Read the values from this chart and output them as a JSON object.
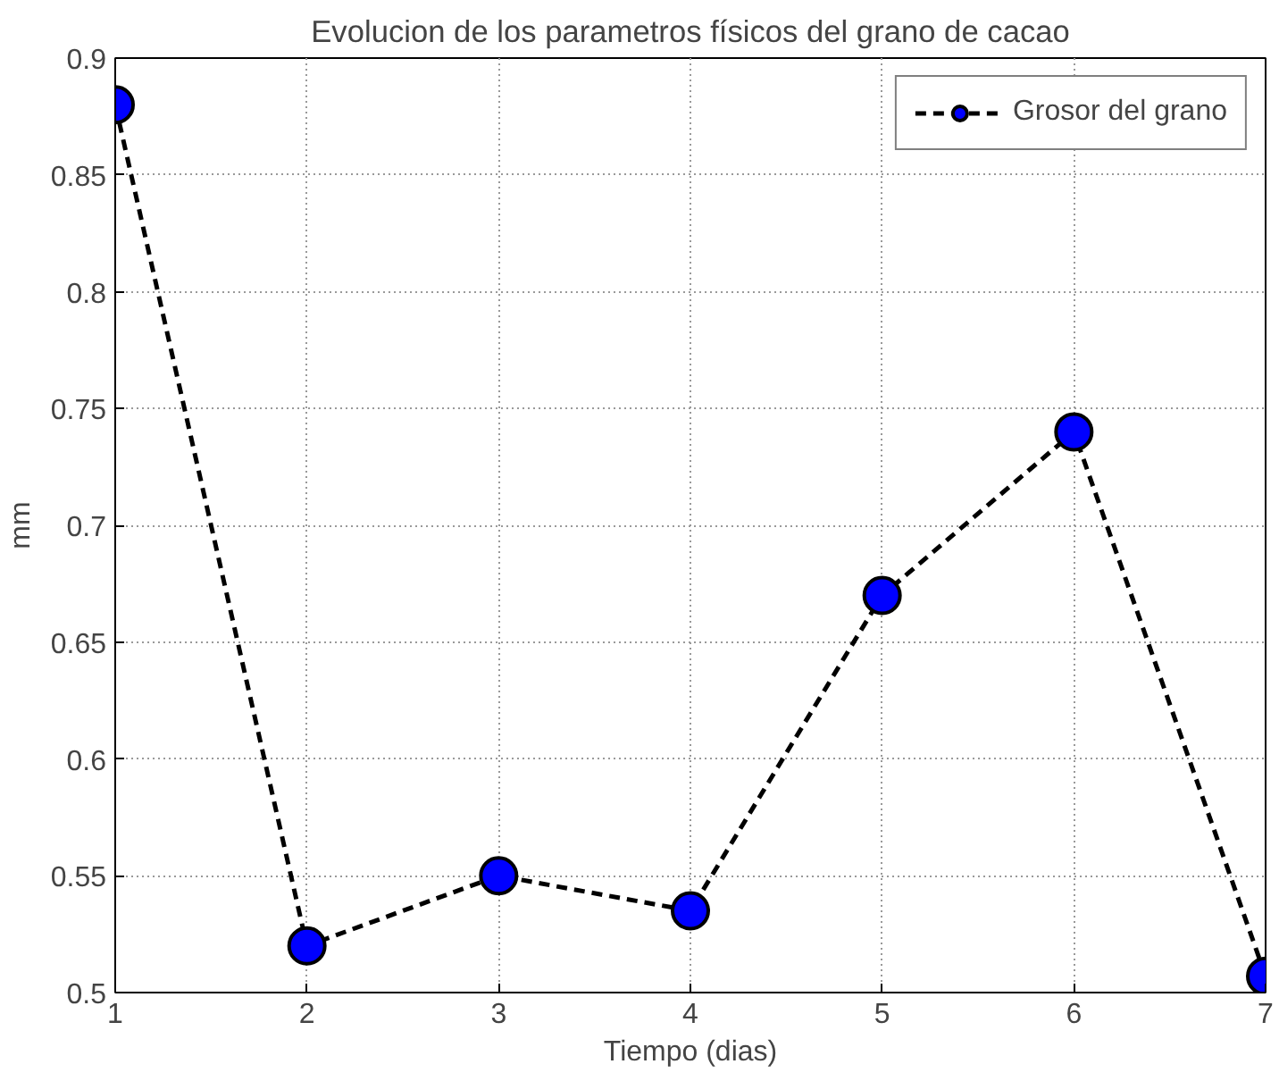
{
  "chart_data": {
    "type": "line",
    "title": "Evolucion de los parametros físicos del grano de cacao",
    "xlabel": "Tiempo (dias)",
    "ylabel": "mm",
    "x": [
      1,
      2,
      3,
      4,
      5,
      6,
      7
    ],
    "series": [
      {
        "name": "Grosor del grano",
        "color": "#0000ff",
        "values": [
          0.88,
          0.52,
          0.55,
          0.535,
          0.67,
          0.74,
          0.507
        ]
      }
    ],
    "xlim": [
      1,
      7
    ],
    "xticks": [
      1,
      2,
      3,
      4,
      5,
      6,
      7
    ],
    "ylim": [
      0.5,
      0.9
    ],
    "yticks": [
      0.5,
      0.55,
      0.6,
      0.65,
      0.7,
      0.75,
      0.8,
      0.85,
      0.9
    ],
    "grid": true,
    "legend": "top right",
    "marker": "circle",
    "line_style": "dashed"
  }
}
